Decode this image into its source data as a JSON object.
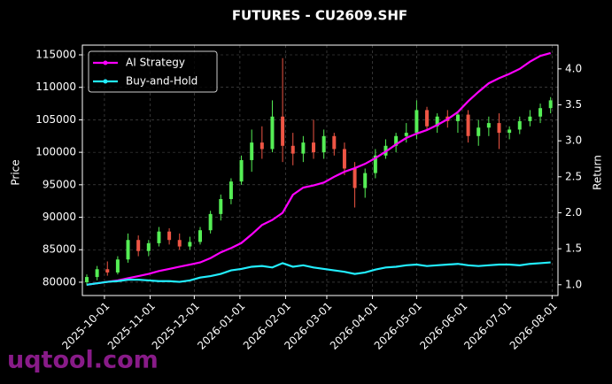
{
  "chart_data": {
    "type": "candlestick",
    "title": "FUTURES - CU2609.SHF",
    "ylabel": "Price",
    "y2label": "Return",
    "watermark": "uqtool.com",
    "x": [
      "2025-09-19",
      "2025-09-26",
      "2025-10-03",
      "2025-10-10",
      "2025-10-17",
      "2025-10-24",
      "2025-10-31",
      "2025-11-07",
      "2025-11-14",
      "2025-11-21",
      "2025-11-28",
      "2025-12-05",
      "2025-12-12",
      "2025-12-19",
      "2025-12-26",
      "2026-01-02",
      "2026-01-09",
      "2026-01-16",
      "2026-01-23",
      "2026-01-30",
      "2026-02-06",
      "2026-02-13",
      "2026-02-20",
      "2026-02-27",
      "2026-03-06",
      "2026-03-13",
      "2026-03-20",
      "2026-03-27",
      "2026-04-03",
      "2026-04-10",
      "2026-04-17",
      "2026-04-24",
      "2026-05-01",
      "2026-05-08",
      "2026-05-15",
      "2026-05-22",
      "2026-05-29",
      "2026-06-05",
      "2026-06-12",
      "2026-06-19",
      "2026-06-26",
      "2026-07-03",
      "2026-07-10",
      "2026-07-17",
      "2026-07-24",
      "2026-07-31"
    ],
    "open": [
      80000,
      80800,
      82000,
      81500,
      83500,
      86500,
      84800,
      86000,
      87800,
      86500,
      85500,
      86200,
      88000,
      90500,
      92800,
      95500,
      98800,
      101500,
      100500,
      105500,
      101000,
      99800,
      101500,
      100000,
      102500,
      100500,
      97500,
      94500,
      96800,
      99500,
      101000,
      102500,
      103000,
      106500,
      104000,
      105500,
      104800,
      105800,
      102500,
      103800,
      104500,
      103000,
      103500,
      104800,
      105500,
      106800
    ],
    "high": [
      81200,
      82500,
      83200,
      84000,
      87500,
      87200,
      86500,
      88500,
      88300,
      87500,
      87000,
      88500,
      91000,
      93500,
      96000,
      99500,
      103500,
      104000,
      108000,
      114500,
      103000,
      102500,
      105000,
      103500,
      103000,
      101500,
      98500,
      97500,
      100500,
      102000,
      103000,
      104500,
      108000,
      107000,
      106000,
      106500,
      106000,
      106500,
      105000,
      105500,
      106000,
      104000,
      105500,
      106500,
      107500,
      108500
    ],
    "low": [
      79500,
      80300,
      81000,
      81200,
      83000,
      84000,
      84000,
      85500,
      85800,
      85000,
      85000,
      85800,
      87500,
      89500,
      92000,
      95000,
      97000,
      99000,
      100000,
      98500,
      98000,
      98500,
      99000,
      99000,
      99500,
      96500,
      91500,
      93000,
      96000,
      99000,
      100000,
      101500,
      102000,
      103500,
      103000,
      103800,
      103000,
      101500,
      101000,
      102500,
      100500,
      102000,
      102800,
      104000,
      104500,
      106000
    ],
    "close": [
      80800,
      82000,
      81500,
      83500,
      86500,
      84800,
      86000,
      87800,
      86500,
      85500,
      86200,
      88000,
      90500,
      92800,
      95500,
      98800,
      101500,
      100500,
      105500,
      101000,
      99800,
      101500,
      100000,
      102500,
      100500,
      97500,
      94500,
      96800,
      99500,
      101000,
      102500,
      103000,
      106500,
      104000,
      105500,
      104800,
      105800,
      102500,
      103800,
      104500,
      103000,
      103500,
      104800,
      105500,
      106800,
      108000
    ],
    "up_color": "#55ee55",
    "down_color": "#ee5544",
    "series": [
      {
        "name": "AI Strategy",
        "color": "#ff00ff",
        "axis": "y2",
        "values": [
          1.0,
          1.02,
          1.04,
          1.06,
          1.09,
          1.12,
          1.15,
          1.19,
          1.22,
          1.25,
          1.28,
          1.31,
          1.37,
          1.45,
          1.51,
          1.58,
          1.7,
          1.83,
          1.9,
          2.0,
          2.25,
          2.35,
          2.38,
          2.42,
          2.5,
          2.57,
          2.62,
          2.68,
          2.76,
          2.85,
          2.95,
          3.04,
          3.1,
          3.15,
          3.22,
          3.3,
          3.4,
          3.55,
          3.68,
          3.8,
          3.87,
          3.93,
          4.0,
          4.1,
          4.18,
          4.22
        ]
      },
      {
        "name": "Buy-and-Hold",
        "color": "#22eeff",
        "axis": "y2",
        "values": [
          1.0,
          1.02,
          1.04,
          1.05,
          1.07,
          1.07,
          1.06,
          1.05,
          1.05,
          1.04,
          1.06,
          1.1,
          1.12,
          1.15,
          1.2,
          1.22,
          1.25,
          1.26,
          1.24,
          1.3,
          1.25,
          1.27,
          1.24,
          1.22,
          1.2,
          1.18,
          1.15,
          1.17,
          1.21,
          1.24,
          1.25,
          1.27,
          1.28,
          1.26,
          1.27,
          1.28,
          1.29,
          1.27,
          1.26,
          1.27,
          1.28,
          1.28,
          1.27,
          1.29,
          1.3,
          1.31
        ]
      }
    ],
    "xlim": [
      "2025-09-16",
      "2026-08-05"
    ],
    "xticks": [
      "2025-10-01",
      "2025-11-01",
      "2025-12-01",
      "2026-01-01",
      "2026-02-01",
      "2026-03-01",
      "2026-04-01",
      "2026-05-01",
      "2026-06-01",
      "2026-07-01",
      "2026-08-01"
    ],
    "ylim": [
      77950,
      116500
    ],
    "yticks": [
      80000,
      85000,
      90000,
      95000,
      100000,
      105000,
      110000,
      115000
    ],
    "y2lim": [
      0.85,
      4.33
    ],
    "y2ticks": [
      {
        "value": 1,
        "label": "1.0"
      },
      1.5,
      {
        "value": 2,
        "label": "2.0"
      },
      2.5,
      {
        "value": 3,
        "label": "3.0"
      },
      3.5,
      {
        "value": 4,
        "label": "4.0"
      }
    ],
    "grid": true,
    "legend": "upper left"
  }
}
